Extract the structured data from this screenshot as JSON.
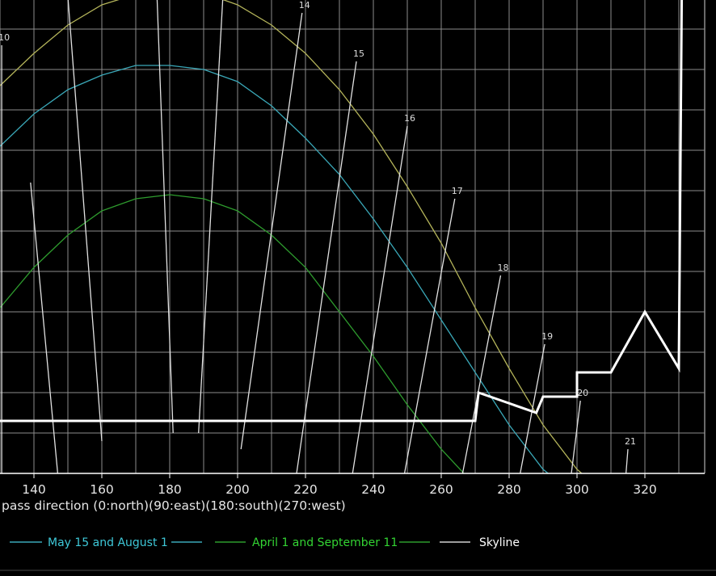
{
  "chart_data": {
    "type": "line",
    "xlabel": "pass direction (0:north)(90:east)(180:south)(270:west)",
    "xlim": [
      130,
      332
    ],
    "ylim": [
      -5,
      67
    ],
    "x_ticks": [
      140,
      160,
      180,
      200,
      220,
      240,
      260,
      280,
      300,
      320
    ],
    "grid": true,
    "background": "#000000",
    "legend_position": "bottom",
    "series": [
      {
        "name": "",
        "color": "#b4b45a",
        "points": [
          [
            120,
            43.0
          ],
          [
            130,
            48.0
          ],
          [
            140,
            52.0
          ],
          [
            150,
            55.5
          ],
          [
            160,
            58.0
          ],
          [
            170,
            59.3
          ],
          [
            180,
            60.0
          ],
          [
            190,
            59.5
          ],
          [
            200,
            58.0
          ],
          [
            210,
            55.5
          ],
          [
            220,
            52.0
          ],
          [
            230,
            47.5
          ],
          [
            240,
            42.0
          ],
          [
            250,
            35.5
          ],
          [
            260,
            28.5
          ],
          [
            270,
            20.5
          ],
          [
            280,
            13.0
          ],
          [
            290,
            6.0
          ],
          [
            300,
            0.5
          ],
          [
            310,
            -3.0
          ],
          [
            325,
            -5.0
          ]
        ]
      },
      {
        "name": "May 15 and August 1",
        "color": "#3aa8b8",
        "points": [
          [
            120,
            35.0
          ],
          [
            130,
            40.5
          ],
          [
            140,
            44.5
          ],
          [
            150,
            47.5
          ],
          [
            160,
            49.3
          ],
          [
            170,
            50.5
          ],
          [
            180,
            50.5
          ],
          [
            190,
            50.0
          ],
          [
            200,
            48.5
          ],
          [
            210,
            45.5
          ],
          [
            220,
            41.5
          ],
          [
            230,
            37.0
          ],
          [
            240,
            31.5
          ],
          [
            250,
            25.5
          ],
          [
            260,
            19.0
          ],
          [
            270,
            12.5
          ],
          [
            280,
            6.0
          ],
          [
            290,
            0.5
          ],
          [
            300,
            -2.8
          ],
          [
            310,
            -5.0
          ]
        ]
      },
      {
        "name": "April 1 and September 11",
        "color": "#2e9c2e",
        "points": [
          [
            120,
            15.0
          ],
          [
            130,
            20.5
          ],
          [
            140,
            25.5
          ],
          [
            150,
            29.5
          ],
          [
            160,
            32.5
          ],
          [
            170,
            34.0
          ],
          [
            180,
            34.5
          ],
          [
            190,
            34.0
          ],
          [
            200,
            32.5
          ],
          [
            210,
            29.5
          ],
          [
            220,
            25.5
          ],
          [
            230,
            20.0
          ],
          [
            240,
            14.5
          ],
          [
            250,
            8.5
          ],
          [
            260,
            3.0
          ],
          [
            270,
            -1.5
          ],
          [
            280,
            -5.0
          ]
        ]
      },
      {
        "name": "Skyline",
        "color": "#ffffff",
        "points": [
          [
            130,
            6.5
          ],
          [
            270,
            6.5
          ],
          [
            271,
            10.0
          ],
          [
            288,
            7.5
          ],
          [
            290,
            9.5
          ],
          [
            300,
            9.5
          ],
          [
            300,
            12.5
          ],
          [
            310,
            12.5
          ],
          [
            320,
            20.0
          ],
          [
            330,
            13.0
          ],
          [
            331,
            67.0
          ]
        ]
      }
    ],
    "hour_lines": [
      {
        "label": "10",
        "x1": 130.5,
        "y1": 53.0,
        "x2": 130.5,
        "y2": -5.0
      },
      {
        "label": "11",
        "x1": 150.0,
        "y1": 59.0,
        "x2": 160.0,
        "y2": 4.0
      },
      {
        "label": "12",
        "x1": 176.0,
        "y1": 62.0,
        "x2": 181.0,
        "y2": 5.0
      },
      {
        "label": "13",
        "x1": 196.0,
        "y1": 61.5,
        "x2": 188.5,
        "y2": 5.0
      },
      {
        "label": "14",
        "x1": 219.0,
        "y1": 57.0,
        "x2": 201.0,
        "y2": 3.0
      },
      {
        "label": "15",
        "x1": 235.0,
        "y1": 51.0,
        "x2": 216.0,
        "y2": -4.0
      },
      {
        "label": "16",
        "x1": 250.0,
        "y1": 43.0,
        "x2": 232.0,
        "y2": -5.0
      },
      {
        "label": "17",
        "x1": 264.0,
        "y1": 34.0,
        "x2": 247.0,
        "y2": -5.0
      },
      {
        "label": "18",
        "x1": 277.5,
        "y1": 24.5,
        "x2": 264.0,
        "y2": -5.0
      },
      {
        "label": "19",
        "x1": 290.5,
        "y1": 16.0,
        "x2": 281.0,
        "y2": -5.0
      },
      {
        "label": "20",
        "x1": 301.0,
        "y1": 9.0,
        "x2": 297.0,
        "y2": -4.5
      },
      {
        "label": "21",
        "x1": 315.0,
        "y1": 3.0,
        "x2": 313.5,
        "y2": -5.0
      }
    ],
    "extra_rays": [
      {
        "x1": 139.0,
        "y1": 36.0,
        "x2": 147.0,
        "y2": 0.0
      }
    ]
  }
}
